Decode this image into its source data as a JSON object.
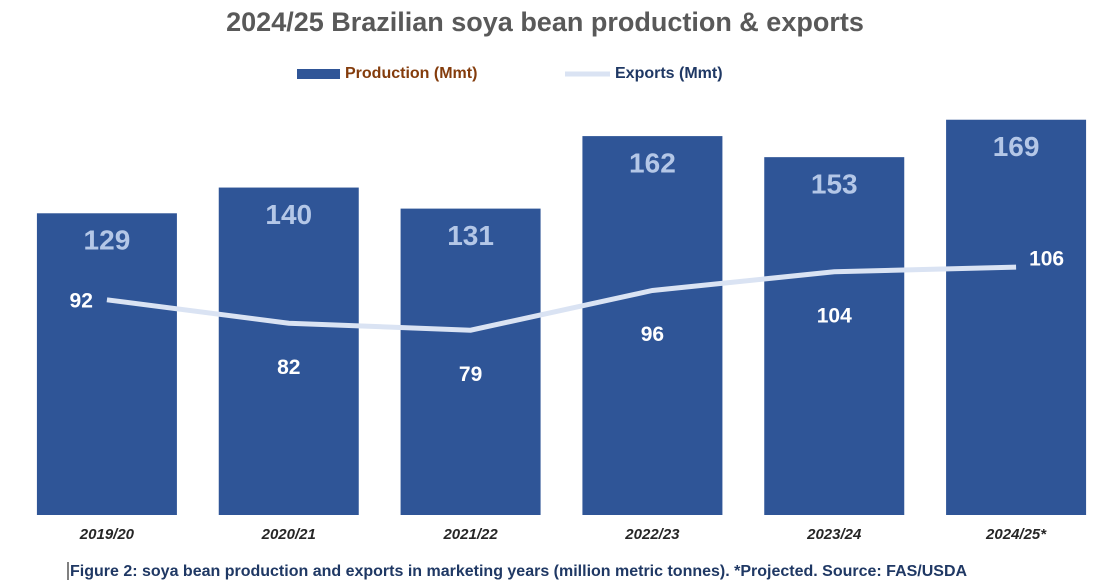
{
  "chart_data": {
    "type": "bar-line",
    "title": "2024/25 Brazilian soya bean production & exports",
    "categories": [
      "2019/20",
      "2020/21",
      "2021/22",
      "2022/23",
      "2023/24",
      "2024/25*"
    ],
    "series": [
      {
        "name": "Production (Mmt)",
        "type": "bar",
        "color": "#2f5597",
        "label_color": "#b4c7e7",
        "legend_color": "#843c0c",
        "values": [
          129,
          140,
          131,
          162,
          153,
          169
        ]
      },
      {
        "name": "Exports (Mmt)",
        "type": "line",
        "color": "#dae3f3",
        "label_color": "#ffffff",
        "legend_color": "#1f3864",
        "values": [
          92,
          82,
          79,
          96,
          104,
          106
        ]
      }
    ],
    "ylim": [
      0,
      180
    ],
    "caption": "Figure 2: soya bean production and exports in marketing years (million metric tonnes). *Projected. Source: FAS/USDA"
  }
}
